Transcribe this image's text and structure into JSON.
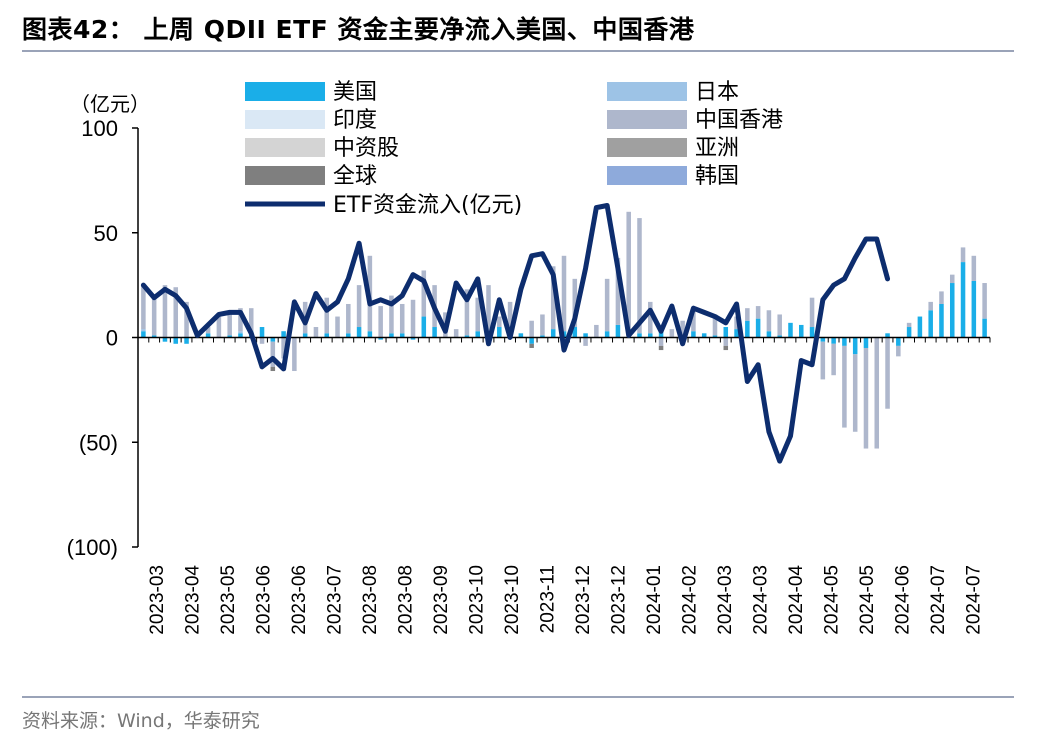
{
  "title": "图表42： 上周 QDII ETF 资金主要净流入美国、中国香港",
  "source": "资料来源：Wind，华泰研究",
  "unit_label": "（亿元）",
  "colors": {
    "美国": "#1aaee8",
    "日本": "#9dc3e6",
    "印度": "#dae8f5",
    "中国香港": "#aeb7cc",
    "中资股": "#d4d4d4",
    "亚洲": "#a0a0a0",
    "全球": "#7f7f7f",
    "韩国": "#8eaadb",
    "ETF资金流入(亿元)": "#0d2d6e"
  },
  "chart_data": {
    "type": "bar",
    "stacked": true,
    "ylim": [
      -100,
      100
    ],
    "yticks": [
      "100",
      "50",
      "0",
      "(50)",
      "(100)"
    ],
    "ytick_values": [
      100,
      50,
      0,
      -50,
      -100
    ],
    "xtick_labels": [
      "2023-03",
      "2023-04",
      "2023-05",
      "2023-06",
      "2023-06",
      "2023-07",
      "2023-08",
      "2023-08",
      "2023-09",
      "2023-10",
      "2023-10",
      "2023-11",
      "2023-12",
      "2023-12",
      "2024-01",
      "2024-02",
      "2024-03",
      "2024-03",
      "2024-04",
      "2024-05",
      "2024-05",
      "2024-06",
      "2024-07",
      "2024-07"
    ],
    "legend": [
      {
        "name": "美国",
        "kind": "bar"
      },
      {
        "name": "日本",
        "kind": "bar"
      },
      {
        "name": "印度",
        "kind": "bar"
      },
      {
        "name": "中国香港",
        "kind": "bar"
      },
      {
        "name": "中资股",
        "kind": "bar"
      },
      {
        "name": "亚洲",
        "kind": "bar"
      },
      {
        "name": "全球",
        "kind": "bar"
      },
      {
        "name": "韩国",
        "kind": "bar"
      },
      {
        "name": "ETF资金流入(亿元)",
        "kind": "line"
      }
    ],
    "series": [
      {
        "name": "美国",
        "values": [
          3,
          1,
          -2,
          -3,
          -3,
          1,
          2,
          0,
          1,
          2,
          3,
          5,
          -2,
          3,
          0,
          2,
          0,
          2,
          0,
          2,
          5,
          3,
          -1,
          2,
          2,
          -1,
          10,
          5,
          0,
          0,
          1,
          3,
          2,
          5,
          3,
          2,
          -3,
          1,
          4,
          3,
          5,
          2,
          0,
          3,
          6,
          4,
          2,
          2,
          5,
          0,
          1,
          3,
          2,
          1,
          5,
          4,
          8,
          9,
          3,
          1,
          7,
          6,
          5,
          -2,
          -3,
          -4,
          -8,
          -5,
          0,
          2,
          -4,
          5,
          10,
          13,
          16,
          26,
          36,
          27,
          9
        ]
      },
      {
        "name": "日本",
        "values": [
          1,
          0,
          0,
          0,
          0,
          0,
          0,
          0,
          0,
          1,
          0,
          0,
          0,
          0,
          0,
          0,
          0,
          0,
          0,
          0,
          0,
          0,
          0,
          0,
          0,
          0,
          0,
          0,
          0,
          0,
          0,
          0,
          0,
          0,
          0,
          0,
          0,
          0,
          0,
          0,
          0,
          0,
          0,
          0,
          0,
          0,
          0,
          0,
          0,
          0,
          0,
          0,
          0,
          0,
          0,
          0,
          0,
          0,
          0,
          0,
          0,
          0,
          0,
          0,
          0,
          0,
          0,
          0,
          0,
          0,
          0,
          0,
          0,
          0,
          0,
          0,
          0,
          0,
          0
        ]
      },
      {
        "name": "印度",
        "values": [
          0,
          0,
          0,
          0,
          0,
          0,
          0,
          0,
          0,
          0,
          0,
          0,
          0,
          0,
          0,
          0,
          0,
          0,
          0,
          0,
          0,
          0,
          0,
          0,
          0,
          0,
          0,
          0,
          0,
          0,
          0,
          0,
          0,
          0,
          0,
          0,
          0,
          0,
          0,
          0,
          0,
          0,
          0,
          0,
          0,
          0,
          0,
          0,
          0,
          0,
          0,
          0,
          0,
          0,
          0,
          0,
          0,
          0,
          0,
          0,
          0,
          0,
          0,
          0,
          0,
          0,
          0,
          0,
          0,
          0,
          0,
          0,
          0,
          0,
          0,
          0,
          0,
          0,
          0
        ]
      },
      {
        "name": "中国香港",
        "values": [
          21,
          18,
          25,
          24,
          17,
          0,
          3,
          10,
          10,
          11,
          11,
          -3,
          -12,
          -10,
          -16,
          15,
          5,
          17,
          10,
          14,
          20,
          36,
          15,
          18,
          14,
          18,
          22,
          20,
          12,
          4,
          22,
          16,
          23,
          5,
          14,
          0,
          8,
          10,
          30,
          36,
          23,
          -4,
          6,
          25,
          32,
          56,
          55,
          15,
          -4,
          4,
          7,
          10,
          0,
          10,
          -4,
          6,
          6,
          6,
          10,
          10,
          0,
          0,
          14,
          -18,
          -15,
          -39,
          -37,
          -48,
          -53,
          -34,
          -5,
          2,
          0,
          4,
          6,
          4,
          7,
          12,
          17
        ]
      },
      {
        "name": "中资股",
        "values": [
          0,
          0,
          0,
          0,
          0,
          0,
          0,
          0,
          0,
          0,
          0,
          0,
          0,
          0,
          0,
          0,
          0,
          0,
          0,
          0,
          0,
          0,
          0,
          0,
          0,
          0,
          0,
          0,
          0,
          0,
          0,
          0,
          0,
          0,
          0,
          0,
          0,
          0,
          0,
          0,
          0,
          0,
          0,
          0,
          0,
          0,
          0,
          0,
          0,
          0,
          0,
          0,
          0,
          0,
          0,
          0,
          0,
          0,
          0,
          0,
          0,
          0,
          0,
          0,
          0,
          0,
          0,
          0,
          0,
          0,
          0,
          0,
          0,
          0,
          0,
          0,
          0,
          0,
          0
        ]
      },
      {
        "name": "亚洲",
        "values": [
          0,
          0,
          0,
          0,
          0,
          0,
          0,
          0,
          0,
          0,
          0,
          0,
          0,
          0,
          0,
          0,
          0,
          0,
          0,
          0,
          0,
          0,
          0,
          0,
          0,
          0,
          0,
          0,
          0,
          0,
          0,
          0,
          0,
          0,
          0,
          0,
          0,
          0,
          0,
          0,
          0,
          0,
          0,
          0,
          0,
          0,
          0,
          0,
          0,
          0,
          0,
          0,
          0,
          0,
          0,
          0,
          0,
          0,
          0,
          0,
          0,
          0,
          0,
          0,
          0,
          0,
          0,
          0,
          0,
          0,
          0,
          0,
          0,
          0,
          0,
          0,
          0,
          0,
          0
        ]
      },
      {
        "name": "全球",
        "values": [
          0,
          0,
          0,
          0,
          0,
          0,
          0,
          0,
          0,
          0,
          0,
          0,
          -2,
          0,
          0,
          0,
          0,
          0,
          0,
          0,
          0,
          0,
          0,
          0,
          0,
          0,
          0,
          0,
          0,
          0,
          0,
          0,
          0,
          0,
          0,
          0,
          -2,
          0,
          0,
          0,
          0,
          0,
          0,
          0,
          0,
          0,
          0,
          0,
          -2,
          0,
          0,
          0,
          0,
          0,
          -2,
          0,
          0,
          0,
          0,
          0,
          0,
          0,
          0,
          0,
          0,
          0,
          0,
          0,
          0,
          0,
          0,
          0,
          0,
          0,
          0,
          0,
          0,
          0,
          0
        ]
      },
      {
        "name": "韩国",
        "values": [
          0,
          0,
          0,
          0,
          0,
          0,
          0,
          0,
          0,
          0,
          0,
          0,
          0,
          0,
          0,
          0,
          0,
          0,
          0,
          0,
          0,
          0,
          0,
          0,
          0,
          0,
          0,
          0,
          0,
          0,
          0,
          0,
          0,
          0,
          0,
          0,
          0,
          0,
          0,
          0,
          0,
          0,
          0,
          0,
          0,
          0,
          0,
          0,
          0,
          0,
          0,
          0,
          0,
          0,
          0,
          0,
          0,
          0,
          0,
          0,
          0,
          0,
          0,
          0,
          0,
          0,
          0,
          0,
          0,
          0,
          0,
          0,
          0,
          0,
          0,
          0,
          0,
          0,
          0
        ]
      },
      {
        "name": "ETF资金流入(亿元)",
        "type": "line",
        "values": [
          25,
          19,
          23,
          20,
          14,
          1,
          6,
          11,
          12,
          12,
          2,
          -14,
          -10,
          -15,
          17,
          7,
          21,
          13,
          17,
          28,
          45,
          16,
          18,
          16,
          20,
          30,
          27,
          14,
          3,
          26,
          18,
          28,
          -3,
          18,
          0,
          23,
          39,
          40,
          30,
          -6,
          9,
          33,
          62,
          63,
          33,
          1,
          7,
          13,
          3,
          15,
          -3,
          14,
          12,
          10,
          7,
          16,
          -21,
          -13,
          -45,
          -59,
          -47,
          -11,
          -13,
          18,
          25,
          28,
          38,
          47,
          47,
          28,
          null,
          null,
          null,
          null,
          null,
          null,
          null,
          null,
          null
        ]
      }
    ]
  }
}
